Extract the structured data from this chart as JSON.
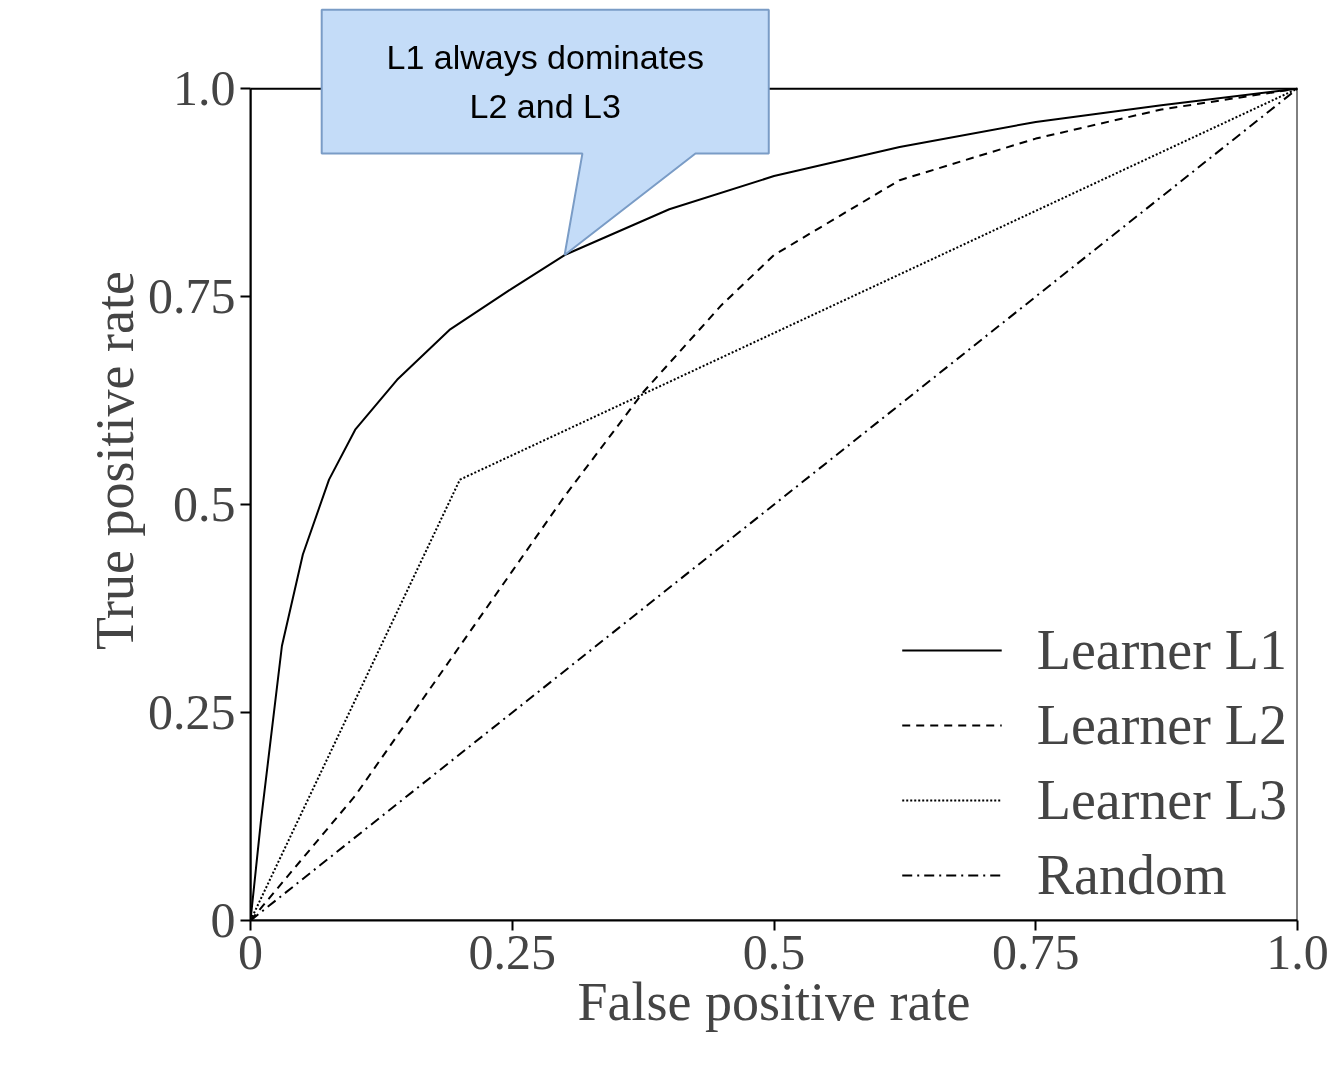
{
  "chart_data": {
    "type": "line",
    "xlabel": "False positive rate",
    "ylabel": "True positive rate",
    "xlim": [
      0,
      1
    ],
    "ylim": [
      0,
      1
    ],
    "xticks": [
      0,
      0.25,
      0.5,
      0.75,
      {
        "value": 1,
        "label": "1.0"
      }
    ],
    "yticks": [
      0,
      0.25,
      0.5,
      0.75,
      {
        "value": 1,
        "label": "1.0"
      }
    ],
    "grid": false,
    "legend": "bottom right",
    "marker": "none",
    "series": [
      {
        "name": "Learner L1",
        "color": "#000000",
        "line_style": "solid",
        "x": [
          0,
          0.01,
          0.03,
          0.05,
          0.075,
          0.1,
          0.14,
          0.19,
          0.25,
          0.3,
          0.4,
          0.5,
          0.62,
          0.75,
          0.87,
          1.0
        ],
        "values": [
          0,
          0.12,
          0.33,
          0.44,
          0.53,
          0.59,
          0.65,
          0.71,
          0.76,
          0.8,
          0.855,
          0.895,
          0.93,
          0.96,
          0.98,
          1.0
        ]
      },
      {
        "name": "Learner L2",
        "color": "#000000",
        "line_style": "dashed",
        "x": [
          0,
          0.1,
          0.2,
          0.25,
          0.3,
          0.375,
          0.45,
          0.5,
          0.62,
          0.75,
          0.87,
          1.0
        ],
        "values": [
          0,
          0.15,
          0.33,
          0.42,
          0.51,
          0.635,
          0.74,
          0.8,
          0.89,
          0.94,
          0.975,
          1.0
        ]
      },
      {
        "name": "Learner L3",
        "color": "#000000",
        "line_style": "dotted",
        "x": [
          0,
          0.2,
          1.0
        ],
        "values": [
          0,
          0.53,
          1.0
        ]
      },
      {
        "name": "Random",
        "color": "#000000",
        "line_style": "dashdot",
        "x": [
          0,
          1.0
        ],
        "values": [
          0,
          1.0
        ]
      }
    ],
    "annotations": [
      "L1 always dominates\nL2 and L3"
    ]
  }
}
